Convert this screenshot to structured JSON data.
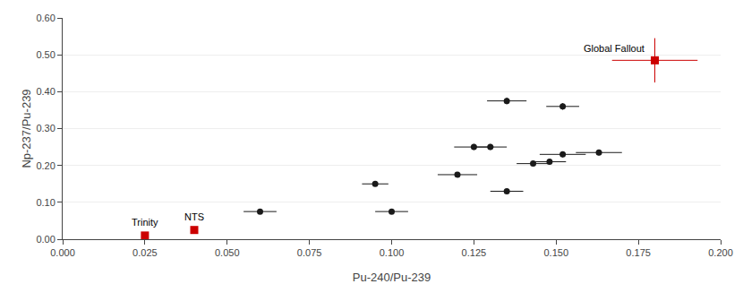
{
  "chart_data": {
    "type": "scatter",
    "xlabel": "Pu-240/Pu-239",
    "ylabel": "Np-237/Pu-239",
    "xlim": [
      0.0,
      0.2
    ],
    "ylim": [
      0.0,
      0.6
    ],
    "xticks": [
      {
        "value": 0.0,
        "label": "0.000"
      },
      0.025,
      {
        "value": 0.05,
        "label": "0.050"
      },
      0.075,
      {
        "value": 0.1,
        "label": "0.100"
      },
      0.125,
      {
        "value": 0.15,
        "label": "0.150"
      },
      0.175,
      {
        "value": 0.2,
        "label": "0.200"
      }
    ],
    "yticks": [
      {
        "value": 0.0,
        "label": "0.00"
      },
      {
        "value": 0.1,
        "label": "0.10"
      },
      {
        "value": 0.2,
        "label": "0.20"
      },
      {
        "value": 0.3,
        "label": "0.30"
      },
      {
        "value": 0.4,
        "label": "0.40"
      },
      {
        "value": 0.5,
        "label": "0.50"
      },
      {
        "value": 0.6,
        "label": "0.60"
      }
    ],
    "grid": "y",
    "series": [
      {
        "color": "#1a1a1a",
        "marker": "circle",
        "x": [
          0.06,
          0.095,
          0.1,
          0.12,
          0.125,
          0.13,
          0.135,
          0.135,
          0.143,
          0.148,
          0.152,
          0.152,
          0.163
        ],
        "values": [
          0.075,
          0.15,
          0.075,
          0.175,
          0.25,
          0.25,
          0.375,
          0.13,
          0.205,
          0.21,
          0.23,
          0.36,
          0.235
        ],
        "xerr": [
          0.005,
          0.004,
          0.005,
          0.006,
          0.006,
          0.005,
          0.006,
          0.005,
          0.005,
          0.005,
          0.007,
          0.005,
          0.007
        ],
        "yerr": [
          0.005,
          0.006,
          0.004,
          0.007,
          0.008,
          0.008,
          0.009,
          0.006,
          0.007,
          0.007,
          0.008,
          0.009,
          0.008
        ]
      },
      {
        "color": "#cc0000",
        "marker": "square",
        "x": [
          0.025,
          0.04,
          0.18
        ],
        "values": [
          0.01,
          0.025,
          0.485
        ],
        "xerr": [
          0.0,
          0.0,
          0.013
        ],
        "yerr": [
          0.0,
          0.0,
          0.06
        ],
        "point_labels": [
          "Trinity",
          "NTS",
          "Global Fallout"
        ]
      }
    ]
  }
}
